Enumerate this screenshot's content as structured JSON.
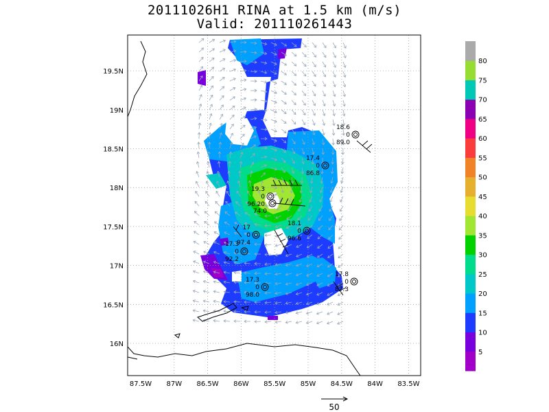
{
  "title": {
    "line1": "20111026H1 RINA at 1.5 km (m/s)",
    "line2": "Valid: 201110261443"
  },
  "map": {
    "lon_ticks": [
      "87.5W",
      "87W",
      "86.5W",
      "86W",
      "85.5W",
      "85W",
      "84.5W",
      "84W",
      "83.5W"
    ],
    "lat_ticks": [
      "16N",
      "16.5N",
      "17N",
      "17.5N",
      "18N",
      "18.5N",
      "19N",
      "19.5N"
    ],
    "grid": true
  },
  "colorbar": {
    "labels": [
      "5",
      "10",
      "15",
      "20",
      "25",
      "30",
      "35",
      "40",
      "45",
      "50",
      "55",
      "60",
      "65",
      "70",
      "75",
      "80"
    ],
    "colors": [
      "#a000c8",
      "#7800dc",
      "#1e3cff",
      "#00a0ff",
      "#00c8c8",
      "#00dc8c",
      "#00d200",
      "#a0e632",
      "#e6dc32",
      "#e6af2d",
      "#f08228",
      "#fa3c3c",
      "#f00082",
      "#8c00b4",
      "#00c8b4",
      "#96dc32",
      "#aaaaaa"
    ]
  },
  "observations": [
    {
      "top": "18.6",
      "mid": "0",
      "bottom": "89.0"
    },
    {
      "top": "17.4",
      "mid": "0",
      "bottom": "86.8"
    },
    {
      "top": "19.3",
      "mid": "0",
      "bottom": "96.20"
    },
    {
      "top": "",
      "mid": "",
      "bottom": "74.0"
    },
    {
      "top": "18.1",
      "mid": "0",
      "bottom": "96.6"
    },
    {
      "top": "17",
      "mid": "0",
      "bottom": "97.4"
    },
    {
      "top": "17.3",
      "mid": "0",
      "bottom": "92.2"
    },
    {
      "top": "17.3",
      "mid": "0",
      "bottom": "98.0"
    },
    {
      "top": "17.8",
      "mid": "0",
      "bottom": "87.3"
    }
  ],
  "vector_key": {
    "label": "50"
  }
}
